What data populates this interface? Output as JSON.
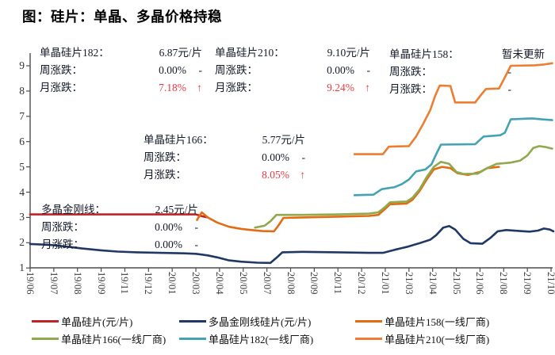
{
  "title": "图：硅片：单晶、多晶价格持稳",
  "annotations": [
    {
      "id": "182",
      "title_label": "单晶硅片182：",
      "title_value": "6.87元/片",
      "week_label": "周涨跌：",
      "week_value": "0.00%",
      "week_suffix": "-",
      "month_label": "月涨跌：",
      "month_value": "7.18%",
      "month_suffix": "↑"
    },
    {
      "id": "210",
      "title_label": "单晶硅片210：",
      "title_value": "9.10元/片",
      "week_label": "周涨跌：",
      "week_value": "0.00%",
      "week_suffix": "-",
      "month_label": "月涨跌：",
      "month_value": "9.24%",
      "month_suffix": "↑"
    },
    {
      "id": "158",
      "title_label": "单晶硅片158：",
      "title_value": "暂未更新",
      "week_label": "周涨跌：",
      "week_value": "",
      "week_suffix": "-",
      "month_label": "月涨跌：",
      "month_value": "",
      "month_suffix": "-"
    },
    {
      "id": "166",
      "title_label": "单晶硅片166：",
      "title_value": "5.77元/片",
      "week_label": "周涨跌：",
      "week_value": "0.00%",
      "week_suffix": "-",
      "month_label": "月涨跌：",
      "month_value": "8.05%",
      "month_suffix": "↑"
    },
    {
      "id": "poly",
      "title_label": "多晶金刚线：",
      "title_value": "2.45元/片",
      "week_label": "周涨跌：",
      "week_value": "0.00%",
      "week_suffix": "-",
      "month_label": "月涨跌：",
      "month_value": "0.00%",
      "month_suffix": "-"
    }
  ],
  "legend": {
    "items": [
      {
        "label": "单晶硅片(元/片)",
        "color": "#bf2227"
      },
      {
        "label": "多晶金刚线硅片(元/片)",
        "color": "#1f3864"
      },
      {
        "label": "单晶硅片158(一线厂商)",
        "color": "#e36c13"
      },
      {
        "label": "单晶硅片166(一线厂商)",
        "color": "#8faa4e"
      },
      {
        "label": "单晶硅片182(一线厂商)",
        "color": "#44a2b4"
      },
      {
        "label": "单晶硅片210(一线厂商)",
        "color": "#ed7d31"
      }
    ]
  },
  "chart_data": {
    "type": "line",
    "title": "图：硅片：单晶、多晶价格持稳",
    "xlabel": "",
    "ylabel": "",
    "x_unit": "tick-index (weekly data, labels every ~5 weeks)",
    "categories": [
      "19/06",
      "19/07",
      "19/08",
      "19/09",
      "19/11",
      "19/12",
      "20/01",
      "20/03",
      "20/04",
      "20/05",
      "20/07",
      "20/08",
      "20/09",
      "20/11",
      "20/12",
      "21/01",
      "21/03",
      "21/04",
      "21/05",
      "21/06",
      "21/08",
      "21/09",
      "21/10"
    ],
    "ylim": [
      1,
      9
    ],
    "yticks": [
      1,
      2,
      3,
      4,
      5,
      6,
      7,
      8,
      9
    ],
    "grid": false,
    "legend_position": "bottom",
    "series": [
      {
        "name": "多晶金刚线硅片(元/片)",
        "color": "#1f3864",
        "latest": 2.45,
        "points": [
          [
            0,
            1.95
          ],
          [
            0.8,
            1.92
          ],
          [
            1.5,
            1.85
          ],
          [
            2.2,
            1.77
          ],
          [
            3,
            1.7
          ],
          [
            3.7,
            1.65
          ],
          [
            4.5,
            1.62
          ],
          [
            5.5,
            1.6
          ],
          [
            6.5,
            1.58
          ],
          [
            7,
            1.56
          ],
          [
            7.5,
            1.5
          ],
          [
            7.9,
            1.42
          ],
          [
            8.4,
            1.3
          ],
          [
            8.9,
            1.25
          ],
          [
            9.6,
            1.21
          ],
          [
            10.15,
            1.2
          ],
          [
            10.4,
            1.4
          ],
          [
            10.65,
            1.62
          ],
          [
            11.5,
            1.64
          ],
          [
            13,
            1.62
          ],
          [
            14.3,
            1.6
          ],
          [
            14.9,
            1.6
          ],
          [
            15.4,
            1.72
          ],
          [
            15.9,
            1.83
          ],
          [
            16.4,
            1.97
          ],
          [
            16.9,
            2.12
          ],
          [
            17.15,
            2.3
          ],
          [
            17.45,
            2.6
          ],
          [
            17.7,
            2.66
          ],
          [
            17.95,
            2.52
          ],
          [
            18.3,
            2.15
          ],
          [
            18.6,
            1.98
          ],
          [
            19.1,
            1.96
          ],
          [
            19.45,
            2.2
          ],
          [
            19.75,
            2.45
          ],
          [
            20.1,
            2.5
          ],
          [
            20.7,
            2.46
          ],
          [
            21.1,
            2.44
          ],
          [
            21.45,
            2.48
          ],
          [
            21.7,
            2.56
          ],
          [
            21.95,
            2.52
          ],
          [
            22.1,
            2.45
          ]
        ]
      },
      {
        "name": "单晶硅片(元/片)",
        "color": "#bf2227",
        "latest": 3.0,
        "points": [
          [
            0,
            3.12
          ],
          [
            5,
            3.12
          ],
          [
            7.0,
            3.12
          ],
          [
            7.25,
            3.05
          ],
          [
            7.5,
            3.0
          ]
        ]
      },
      {
        "name": "单晶硅片158(一线厂商)",
        "color": "#e36c13",
        "latest": 5.0,
        "points": [
          [
            7.05,
            2.9
          ],
          [
            7.25,
            3.2
          ],
          [
            7.5,
            3.0
          ],
          [
            7.9,
            2.8
          ],
          [
            8.4,
            2.63
          ],
          [
            8.9,
            2.55
          ],
          [
            9.35,
            2.5
          ],
          [
            9.8,
            2.46
          ],
          [
            10.3,
            2.45
          ],
          [
            10.5,
            2.7
          ],
          [
            10.7,
            2.98
          ],
          [
            11.5,
            3.0
          ],
          [
            13,
            3.03
          ],
          [
            14.3,
            3.06
          ],
          [
            14.7,
            3.1
          ],
          [
            14.95,
            3.3
          ],
          [
            15.2,
            3.52
          ],
          [
            15.9,
            3.55
          ],
          [
            16.15,
            3.7
          ],
          [
            16.45,
            4.05
          ],
          [
            16.75,
            4.5
          ],
          [
            17.05,
            4.9
          ],
          [
            17.4,
            5.0
          ],
          [
            17.75,
            4.95
          ],
          [
            18.05,
            4.75
          ],
          [
            18.5,
            4.68
          ],
          [
            19.0,
            4.8
          ],
          [
            19.3,
            4.95
          ],
          [
            19.8,
            5.0
          ]
        ]
      },
      {
        "name": "单晶硅片166(一线厂商)",
        "color": "#8faa4e",
        "latest": 5.77,
        "points": [
          [
            9.5,
            2.6
          ],
          [
            9.9,
            2.67
          ],
          [
            10.15,
            2.85
          ],
          [
            10.4,
            3.1
          ],
          [
            11.5,
            3.1
          ],
          [
            13,
            3.12
          ],
          [
            14.3,
            3.15
          ],
          [
            14.7,
            3.2
          ],
          [
            14.95,
            3.38
          ],
          [
            15.2,
            3.6
          ],
          [
            15.9,
            3.63
          ],
          [
            16.15,
            3.78
          ],
          [
            16.45,
            4.12
          ],
          [
            16.75,
            4.6
          ],
          [
            17.05,
            5.0
          ],
          [
            17.35,
            5.2
          ],
          [
            17.7,
            5.12
          ],
          [
            18.0,
            4.8
          ],
          [
            18.3,
            4.72
          ],
          [
            18.9,
            4.73
          ],
          [
            19.3,
            4.95
          ],
          [
            19.7,
            5.12
          ],
          [
            20.3,
            5.17
          ],
          [
            20.7,
            5.25
          ],
          [
            21.0,
            5.45
          ],
          [
            21.25,
            5.75
          ],
          [
            21.5,
            5.82
          ],
          [
            21.8,
            5.78
          ],
          [
            22.05,
            5.72
          ]
        ]
      },
      {
        "name": "单晶硅片182(一线厂商)",
        "color": "#44a2b4",
        "latest": 6.87,
        "points": [
          [
            13.7,
            3.88
          ],
          [
            14.5,
            3.9
          ],
          [
            14.85,
            4.12
          ],
          [
            15.4,
            4.2
          ],
          [
            15.7,
            4.32
          ],
          [
            16.0,
            4.5
          ],
          [
            16.3,
            4.82
          ],
          [
            16.7,
            4.9
          ],
          [
            16.95,
            5.1
          ],
          [
            17.15,
            5.5
          ],
          [
            17.35,
            5.88
          ],
          [
            18.8,
            5.9
          ],
          [
            19.15,
            6.2
          ],
          [
            19.85,
            6.25
          ],
          [
            20.05,
            6.35
          ],
          [
            20.3,
            6.88
          ],
          [
            21.2,
            6.92
          ],
          [
            21.6,
            6.88
          ],
          [
            22.05,
            6.85
          ]
        ]
      },
      {
        "name": "单晶硅片210(一线厂商)",
        "color": "#ed7d31",
        "latest": 9.1,
        "points": [
          [
            13.7,
            5.5
          ],
          [
            14.9,
            5.5
          ],
          [
            15.15,
            5.8
          ],
          [
            16.0,
            5.82
          ],
          [
            16.3,
            6.2
          ],
          [
            16.6,
            6.7
          ],
          [
            16.9,
            7.25
          ],
          [
            17.1,
            7.8
          ],
          [
            17.3,
            8.22
          ],
          [
            17.75,
            8.2
          ],
          [
            17.95,
            7.55
          ],
          [
            18.8,
            7.55
          ],
          [
            19.0,
            7.8
          ],
          [
            19.25,
            8.08
          ],
          [
            19.8,
            8.1
          ],
          [
            20.0,
            8.45
          ],
          [
            20.3,
            9.0
          ],
          [
            21.3,
            9.02
          ],
          [
            21.7,
            9.05
          ],
          [
            22.05,
            9.1
          ]
        ]
      }
    ]
  }
}
